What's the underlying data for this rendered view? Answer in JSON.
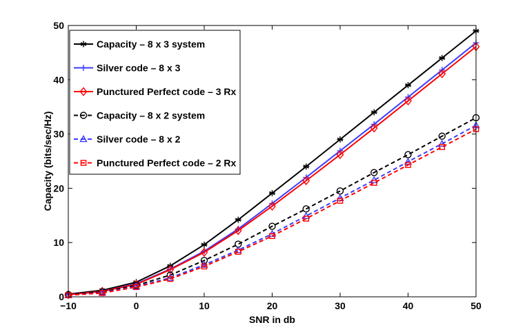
{
  "chart_data": {
    "type": "line",
    "xlabel": "SNR in db",
    "ylabel": "Capacity (bits/sec/Hz)",
    "xlim": [
      -10,
      50
    ],
    "ylim": [
      0,
      50
    ],
    "xticks": [
      -10,
      0,
      10,
      20,
      30,
      40,
      50
    ],
    "yticks": [
      0,
      10,
      20,
      30,
      40,
      50
    ],
    "x": [
      -10,
      -5,
      0,
      5,
      10,
      15,
      20,
      25,
      30,
      35,
      40,
      45,
      50
    ],
    "grid": false,
    "legend_position": "top-left",
    "series": [
      {
        "name": "Capacity – 8 x 3 system",
        "color": "#000000",
        "dash": "solid",
        "marker": "asterisk",
        "values": [
          0.5,
          1.2,
          2.7,
          5.7,
          9.6,
          14.2,
          19.1,
          24.0,
          29.0,
          34.0,
          39.0,
          44.0,
          49.0
        ]
      },
      {
        "name": "Silver code – 8 x 3",
        "color": "#3b3bff",
        "dash": "solid",
        "marker": "plus",
        "values": [
          0.4,
          1.0,
          2.4,
          5.1,
          8.4,
          12.5,
          17.2,
          22.0,
          26.9,
          31.8,
          36.8,
          41.8,
          46.8
        ]
      },
      {
        "name": "Punctured Perfect code – 3 Rx",
        "color": "#ff0000",
        "dash": "solid",
        "marker": "diamond",
        "values": [
          0.4,
          1.0,
          2.3,
          5.0,
          8.2,
          12.2,
          16.7,
          21.4,
          26.2,
          31.1,
          36.1,
          41.1,
          46.1
        ]
      },
      {
        "name": "Capacity – 8 x 2 system",
        "color": "#000000",
        "dash": "dashed",
        "marker": "circle",
        "values": [
          0.4,
          0.9,
          2.1,
          4.0,
          6.7,
          9.7,
          13.0,
          16.2,
          19.5,
          22.9,
          26.2,
          29.6,
          33.0
        ]
      },
      {
        "name": "Silver code – 8 x 2",
        "color": "#3b3bff",
        "dash": "dashed",
        "marker": "triangle",
        "values": [
          0.3,
          0.8,
          1.9,
          3.5,
          5.9,
          8.6,
          11.6,
          14.9,
          18.2,
          21.5,
          24.9,
          28.2,
          31.6
        ]
      },
      {
        "name": "Punctured Perfect code – 2 Rx",
        "color": "#ff0000",
        "dash": "dashed",
        "marker": "square",
        "values": [
          0.3,
          0.7,
          1.8,
          3.3,
          5.6,
          8.3,
          11.2,
          14.4,
          17.7,
          21.0,
          24.3,
          27.6,
          30.9
        ]
      }
    ]
  }
}
